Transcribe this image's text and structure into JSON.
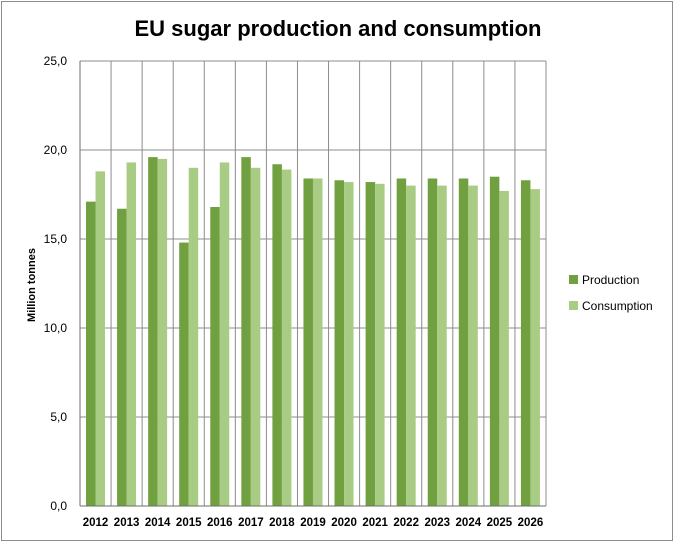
{
  "chart_data": {
    "type": "bar",
    "title": "EU sugar production and consumption",
    "xlabel": "",
    "ylabel": "Million tonnes",
    "ylim": [
      0,
      25
    ],
    "yticks": [
      "0,0",
      "5,0",
      "10,0",
      "15,0",
      "20,0",
      "25,0"
    ],
    "grid": true,
    "legend_position": "right",
    "categories": [
      "2012",
      "2013",
      "2014",
      "2015",
      "2016",
      "2017",
      "2018",
      "2019",
      "2020",
      "2021",
      "2022",
      "2023",
      "2024",
      "2025",
      "2026"
    ],
    "series": [
      {
        "name": "Production",
        "color": "#70a040",
        "values": [
          17.1,
          16.7,
          19.6,
          14.8,
          16.8,
          19.6,
          19.2,
          18.4,
          18.3,
          18.2,
          18.4,
          18.4,
          18.4,
          18.5,
          18.3
        ]
      },
      {
        "name": "Consumption",
        "color": "#a8cc84",
        "values": [
          18.8,
          19.3,
          19.5,
          19.0,
          19.3,
          19.0,
          18.9,
          18.4,
          18.2,
          18.1,
          18.0,
          18.0,
          18.0,
          17.7,
          17.8
        ]
      }
    ]
  }
}
